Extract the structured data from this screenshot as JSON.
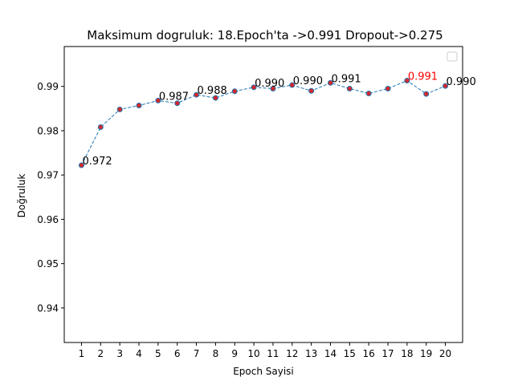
{
  "chart_data": {
    "type": "line",
    "title": "Maksimum dogruluk: 18.Epoch'ta ->0.991 Dropout->0.275",
    "xlabel": "Epoch Sayisi",
    "ylabel": "Doğruluk",
    "x": [
      1,
      2,
      3,
      4,
      5,
      6,
      7,
      8,
      9,
      10,
      11,
      12,
      13,
      14,
      15,
      16,
      17,
      18,
      19,
      20
    ],
    "series": [
      {
        "values": [
          0.9722,
          0.9808,
          0.9848,
          0.9857,
          0.9868,
          0.9862,
          0.9881,
          0.9874,
          0.9889,
          0.9898,
          0.9895,
          0.9903,
          0.989,
          0.9908,
          0.9895,
          0.9884,
          0.9895,
          0.9913,
          0.9883,
          0.9901
        ],
        "line_color": "#1f77b4",
        "line_style": "dashed",
        "marker_face": "#d62728",
        "marker_edge": "#1f77b4"
      }
    ],
    "annotations": [
      {
        "x": 1,
        "text": "0.972",
        "color": "#000000"
      },
      {
        "x": 5,
        "text": "0.987",
        "color": "#000000"
      },
      {
        "x": 7,
        "text": "0.988",
        "color": "#000000"
      },
      {
        "x": 10,
        "text": "0.990",
        "color": "#000000"
      },
      {
        "x": 12,
        "text": "0.990",
        "color": "#000000"
      },
      {
        "x": 14,
        "text": "0.991",
        "color": "#000000"
      },
      {
        "x": 18,
        "text": "0.991",
        "color": "#ff0000"
      },
      {
        "x": 20,
        "text": "0.990",
        "color": "#000000"
      }
    ],
    "xticks": [
      "1",
      "2",
      "3",
      "4",
      "5",
      "6",
      "7",
      "8",
      "9",
      "10",
      "11",
      "12",
      "13",
      "14",
      "15",
      "16",
      "17",
      "18",
      "19",
      "20"
    ],
    "yticks": [
      0.94,
      0.95,
      0.96,
      0.97,
      0.98,
      0.99
    ],
    "ytick_labels": [
      "0.94",
      "0.95",
      "0.96",
      "0.97",
      "0.98",
      "0.99"
    ],
    "xlim": [
      0.1,
      20.9
    ],
    "ylim": [
      0.9322,
      0.999
    ],
    "grid": false,
    "legend": "top-right (empty)"
  }
}
